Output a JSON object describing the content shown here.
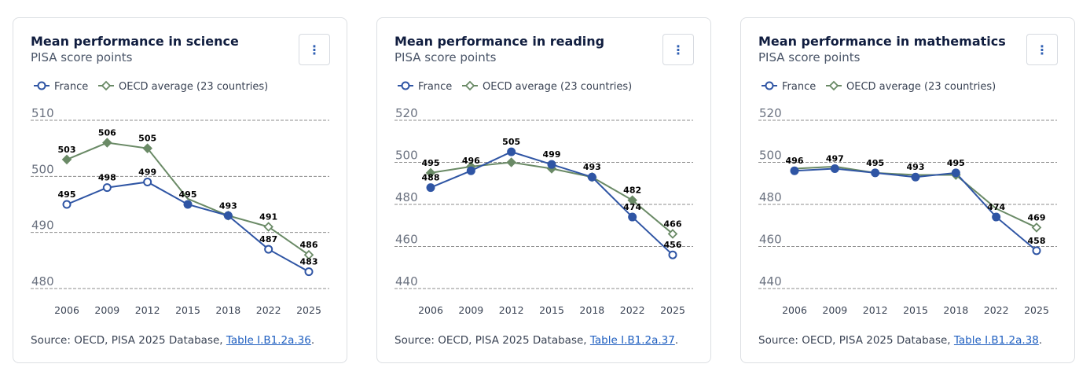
{
  "menu_icon": "⋮",
  "source_prefix": "Source: OECD, PISA 2025 Database, ",
  "source_suffix": ".",
  "colors": {
    "france": "#2f55a4",
    "oecd": "#6a8a66",
    "grid": "#8c8c8c"
  },
  "chart_data": [
    {
      "type": "line",
      "title": "Mean performance in science",
      "subtitle": "PISA score points",
      "link_text": "Table I.B1.2a.36",
      "categories": [
        "2006",
        "2009",
        "2012",
        "2015",
        "2018",
        "2022",
        "2025"
      ],
      "ylim": [
        480,
        510
      ],
      "yticks": [
        480,
        490,
        500,
        510
      ],
      "legend_placement": "top-left",
      "grid": true,
      "series": [
        {
          "name": "France",
          "values": [
            495,
            498,
            499,
            495,
            493,
            487,
            483
          ],
          "markers": [
            "open",
            "open",
            "open",
            "filled",
            "filled",
            "open",
            "open"
          ],
          "labels": [
            true,
            true,
            true,
            true,
            false,
            true,
            true
          ]
        },
        {
          "name": "OECD average (23 countries)",
          "values": [
            503,
            506,
            505,
            496,
            493,
            491,
            486
          ],
          "markers": [
            "filled",
            "filled",
            "filled",
            "none",
            "filled",
            "open",
            "open"
          ],
          "labels": [
            true,
            true,
            true,
            false,
            true,
            true,
            true
          ]
        }
      ]
    },
    {
      "type": "line",
      "title": "Mean performance in reading",
      "subtitle": "PISA score points",
      "link_text": "Table I.B1.2a.37",
      "categories": [
        "2006",
        "2009",
        "2012",
        "2015",
        "2018",
        "2022",
        "2025"
      ],
      "ylim": [
        440,
        520
      ],
      "yticks": [
        440,
        460,
        480,
        500,
        520
      ],
      "legend_placement": "top-left",
      "grid": true,
      "series": [
        {
          "name": "France",
          "values": [
            488,
            496,
            505,
            499,
            493,
            474,
            456
          ],
          "markers": [
            "filled",
            "filled",
            "filled",
            "filled",
            "filled",
            "filled",
            "open"
          ],
          "labels": [
            true,
            true,
            true,
            true,
            true,
            true,
            true
          ]
        },
        {
          "name": "OECD average (23 countries)",
          "values": [
            495,
            498,
            500,
            497,
            493,
            482,
            466
          ],
          "markers": [
            "filled",
            "filled",
            "filled",
            "filled",
            "filled",
            "filled",
            "open"
          ],
          "labels": [
            true,
            false,
            false,
            false,
            false,
            true,
            true
          ]
        }
      ]
    },
    {
      "type": "line",
      "title": "Mean performance in mathematics",
      "subtitle": "PISA score points",
      "link_text": "Table I.B1.2a.38",
      "categories": [
        "2006",
        "2009",
        "2012",
        "2015",
        "2018",
        "2022",
        "2025"
      ],
      "ylim": [
        440,
        520
      ],
      "yticks": [
        440,
        460,
        480,
        500,
        520
      ],
      "legend_placement": "top-left",
      "grid": true,
      "series": [
        {
          "name": "France",
          "values": [
            496,
            497,
            495,
            493,
            495,
            474,
            458
          ],
          "markers": [
            "filled",
            "filled",
            "filled",
            "filled",
            "filled",
            "filled",
            "open"
          ],
          "labels": [
            true,
            true,
            true,
            true,
            true,
            true,
            true
          ]
        },
        {
          "name": "OECD average (23 countries)",
          "values": [
            497,
            498,
            495,
            494,
            494,
            478,
            469
          ],
          "markers": [
            "none",
            "none",
            "none",
            "none",
            "filled",
            "none",
            "open"
          ],
          "labels": [
            false,
            false,
            false,
            false,
            false,
            false,
            true
          ]
        }
      ]
    }
  ]
}
